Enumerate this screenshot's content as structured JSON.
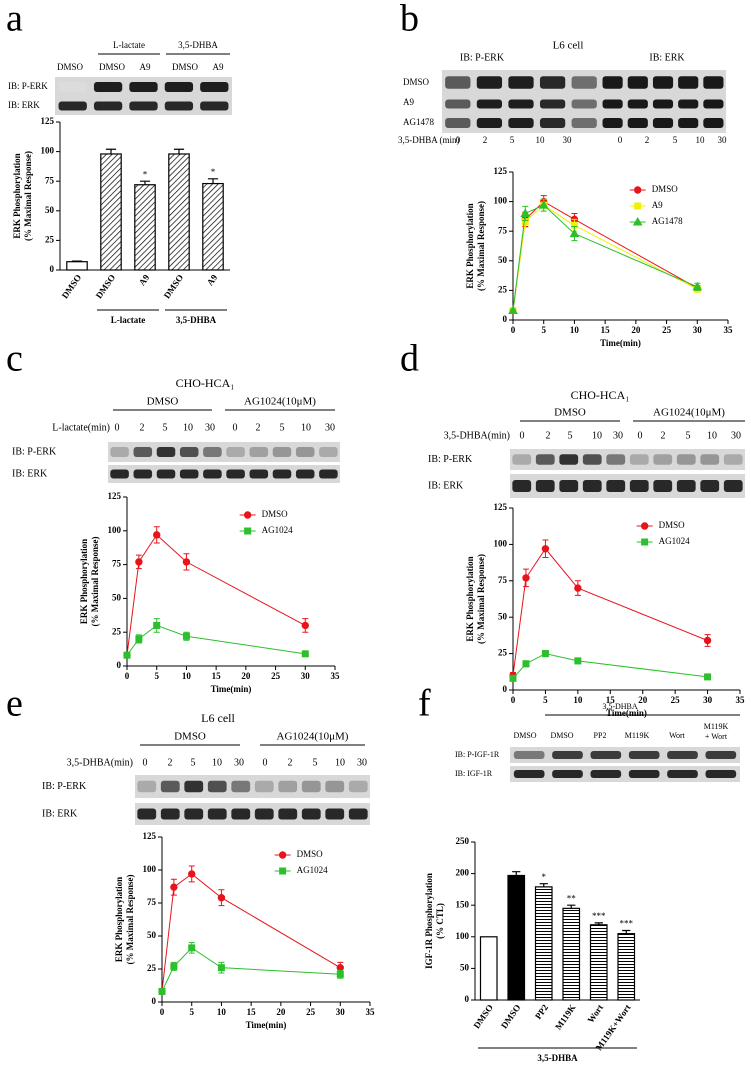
{
  "panel_labels": [
    "a",
    "b",
    "c",
    "d",
    "e",
    "f"
  ],
  "blots": [
    {
      "groups": [
        "L-lactate",
        "3,5-DHBA"
      ],
      "lanes": [
        "DMSO",
        "DMSO",
        "A9",
        "DMSO",
        "A9"
      ],
      "rows": [
        "IB: P-ERK",
        "IB: ERK"
      ]
    },
    {
      "cell": "L6 cell",
      "groups": [
        "IB: P-ERK",
        "IB: ERK"
      ],
      "rows": [
        "DMSO",
        "A9",
        "AG1478"
      ],
      "time_label": "3,5-DHBA (min)",
      "times": [
        0,
        2,
        5,
        10,
        30,
        0,
        2,
        5,
        10,
        30
      ]
    },
    {
      "cell": "CHO-HCA₁",
      "groups": [
        "DMSO",
        "AG1024(10μM)"
      ],
      "time_label": "L-lactate(min)",
      "times": [
        0,
        2,
        5,
        10,
        30,
        0,
        2,
        5,
        10,
        30
      ],
      "rows": [
        "IB: P-ERK",
        "IB: ERK"
      ]
    },
    {
      "cell": "CHO-HCA₁",
      "groups": [
        "DMSO",
        "AG1024(10μM)"
      ],
      "time_label": "3,5-DHBA(min)",
      "times": [
        0,
        2,
        5,
        10,
        30,
        0,
        2,
        5,
        10,
        30
      ],
      "rows": [
        "IB: P-ERK",
        "IB: ERK"
      ]
    },
    {
      "cell": "L6 cell",
      "groups": [
        "DMSO",
        "AG1024(10μM)"
      ],
      "time_label": "3,5-DHBA(min)",
      "times": [
        0,
        2,
        5,
        10,
        30,
        0,
        2,
        5,
        10,
        30
      ],
      "rows": [
        "IB: P-ERK",
        "IB: ERK"
      ]
    },
    {
      "groups": [
        "3,5-DHBA"
      ],
      "lanes": [
        "DMSO",
        "DMSO",
        "PP2",
        "M119K",
        "Wort",
        [
          "M119K",
          "+ Wort"
        ]
      ],
      "rows": [
        "IB: P-IGF-1R",
        "IB: IGF-1R"
      ]
    }
  ],
  "chart_data": [
    {
      "type": "bar",
      "ylabel": [
        "ERK Phosphorylation",
        "(% Maximal Response)"
      ],
      "categories": [
        "DMSO",
        "DMSO",
        "A9",
        "DMSO",
        "A9"
      ],
      "values": [
        7,
        98,
        72,
        98,
        73
      ],
      "errors": [
        0.5,
        4,
        3,
        4,
        4
      ],
      "annotations": [
        null,
        null,
        "*",
        null,
        "*"
      ],
      "bar_styles": [
        "open",
        "hatched",
        "hatched",
        "hatched",
        "hatched"
      ],
      "groups": [
        {
          "label": "L-lactate",
          "from": 1,
          "to": 2
        },
        {
          "label": "3,5-DHBA",
          "from": 3,
          "to": 4
        }
      ],
      "ylim": [
        0,
        125
      ],
      "yticks": [
        0,
        25,
        50,
        75,
        100,
        125
      ]
    },
    {
      "type": "line",
      "ylabel": [
        "ERK Phosphorylation",
        "(% Maximal Response)"
      ],
      "xlabel": "Time(min)",
      "x": [
        0,
        2,
        5,
        10,
        30
      ],
      "series": [
        {
          "name": "DMSO",
          "color": "#e8141b",
          "marker": "circle",
          "values": [
            8,
            85,
            100,
            85,
            27
          ],
          "errors": [
            1,
            6,
            5,
            5,
            2
          ]
        },
        {
          "name": "A9",
          "color": "#f0f000",
          "marker": "square",
          "values": [
            8,
            83,
            97,
            80,
            26
          ],
          "errors": [
            1,
            5,
            5,
            5,
            2
          ]
        },
        {
          "name": "AG1478",
          "color": "#2dbf2d",
          "marker": "triangle",
          "values": [
            8,
            90,
            97,
            73,
            28
          ],
          "errors": [
            1,
            6,
            5,
            6,
            3
          ]
        }
      ],
      "xlim": [
        0,
        35
      ],
      "xticks": [
        0,
        5,
        10,
        15,
        20,
        25,
        30,
        35
      ],
      "ylim": [
        0,
        125
      ],
      "yticks": [
        0,
        25,
        50,
        75,
        100,
        125
      ]
    },
    {
      "type": "line",
      "ylabel": [
        "ERK Phosphorylation",
        "(% Maximal Response)"
      ],
      "xlabel": "Time(min)",
      "x": [
        0,
        2,
        5,
        10,
        30
      ],
      "series": [
        {
          "name": "DMSO",
          "color": "#e8141b",
          "marker": "circle",
          "values": [
            8,
            77,
            97,
            77,
            30
          ],
          "errors": [
            1,
            5,
            6,
            6,
            5
          ]
        },
        {
          "name": "AG1024",
          "color": "#2dbf2d",
          "marker": "square",
          "values": [
            8,
            20,
            30,
            22,
            9
          ],
          "errors": [
            1,
            3,
            5,
            3,
            1
          ]
        }
      ],
      "xlim": [
        0,
        35
      ],
      "xticks": [
        0,
        5,
        10,
        15,
        20,
        25,
        30,
        35
      ],
      "ylim": [
        0,
        125
      ],
      "yticks": [
        0,
        25,
        50,
        75,
        100,
        125
      ]
    },
    {
      "type": "line",
      "ylabel": [
        "ERK Phosphorylation",
        "(% Maximal Response)"
      ],
      "xlabel": "Time(min)",
      "x": [
        0,
        2,
        5,
        10,
        30
      ],
      "series": [
        {
          "name": "DMSO",
          "color": "#e8141b",
          "marker": "circle",
          "values": [
            10,
            77,
            97,
            70,
            34
          ],
          "errors": [
            2,
            6,
            6,
            5,
            4
          ]
        },
        {
          "name": "AG1024",
          "color": "#2dbf2d",
          "marker": "square",
          "values": [
            8,
            18,
            25,
            20,
            9
          ],
          "errors": [
            1,
            2,
            2,
            2,
            1
          ]
        }
      ],
      "xlim": [
        0,
        35
      ],
      "xticks": [
        0,
        5,
        10,
        15,
        20,
        25,
        30,
        35
      ],
      "ylim": [
        0,
        125
      ],
      "yticks": [
        0,
        25,
        50,
        75,
        100,
        125
      ]
    },
    {
      "type": "line",
      "ylabel": [
        "ERK Phosphorylation",
        "(% Maximal Response)"
      ],
      "xlabel": "Time(min)",
      "x": [
        0,
        2,
        5,
        10,
        30
      ],
      "series": [
        {
          "name": "DMSO",
          "color": "#e8141b",
          "marker": "circle",
          "values": [
            8,
            87,
            97,
            79,
            26
          ],
          "errors": [
            1,
            6,
            6,
            6,
            4
          ]
        },
        {
          "name": "AG1024",
          "color": "#2dbf2d",
          "marker": "square",
          "values": [
            8,
            27,
            41,
            26,
            21
          ],
          "errors": [
            1,
            3,
            4,
            4,
            3
          ]
        }
      ],
      "xlim": [
        0,
        35
      ],
      "xticks": [
        0,
        5,
        10,
        15,
        20,
        25,
        30,
        35
      ],
      "ylim": [
        0,
        125
      ],
      "yticks": [
        0,
        25,
        50,
        75,
        100,
        125
      ]
    },
    {
      "type": "bar",
      "ylabel": [
        "IGF-1R Phosphorylation",
        "(% CTL)"
      ],
      "categories": [
        "DMSO",
        "DMSO",
        "PP2",
        "M119K",
        "Wort",
        "M119K+Wort"
      ],
      "values": [
        100,
        197,
        179,
        145,
        119,
        105
      ],
      "errors": [
        0,
        6,
        5,
        5,
        3,
        5
      ],
      "annotations": [
        null,
        null,
        "*",
        "**",
        "***",
        "***"
      ],
      "bar_styles": [
        "open",
        "filled",
        "hatched",
        "hatched",
        "hatched",
        "hatched"
      ],
      "groups": [
        {
          "label": "3,5-DHBA",
          "from": 0,
          "to": 5
        }
      ],
      "ylim": [
        0,
        250
      ],
      "yticks": [
        0,
        50,
        100,
        150,
        200,
        250
      ]
    }
  ]
}
